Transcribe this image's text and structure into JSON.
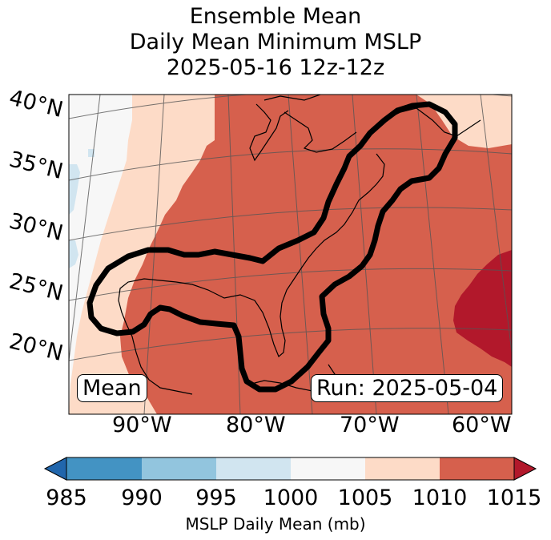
{
  "title": {
    "line1": "Ensemble Mean",
    "line2": "Daily Mean Minimum MSLP",
    "line3": "2025-05-16 12z-12z"
  },
  "map": {
    "lat_labels": [
      "40°N",
      "35°N",
      "30°N",
      "25°N",
      "20°N"
    ],
    "lon_labels": [
      "90°W",
      "80°W",
      "70°W",
      "60°W"
    ],
    "mean_box": "Mean",
    "run_box": "Run: 2025-05-04",
    "colors": {
      "below_985": "#2166ac",
      "985_990": "#4393c3",
      "990_995": "#92c5de",
      "995_1000": "#d1e5f0",
      "1000_1005": "#f7f7f7",
      "1005_1010": "#fddbc7",
      "1010_1015": "#d6604d",
      "above_1015": "#b2182b"
    }
  },
  "colorbar": {
    "label": "MSLP Daily Mean (mb)",
    "ticks": [
      "985",
      "990",
      "995",
      "1000",
      "1005",
      "1010",
      "1015"
    ],
    "colors": [
      "#4393c3",
      "#92c5de",
      "#d1e5f0",
      "#f7f7f7",
      "#fddbc7",
      "#d6604d"
    ],
    "under_color": "#2166ac",
    "over_color": "#b2182b",
    "extend": "both"
  }
}
